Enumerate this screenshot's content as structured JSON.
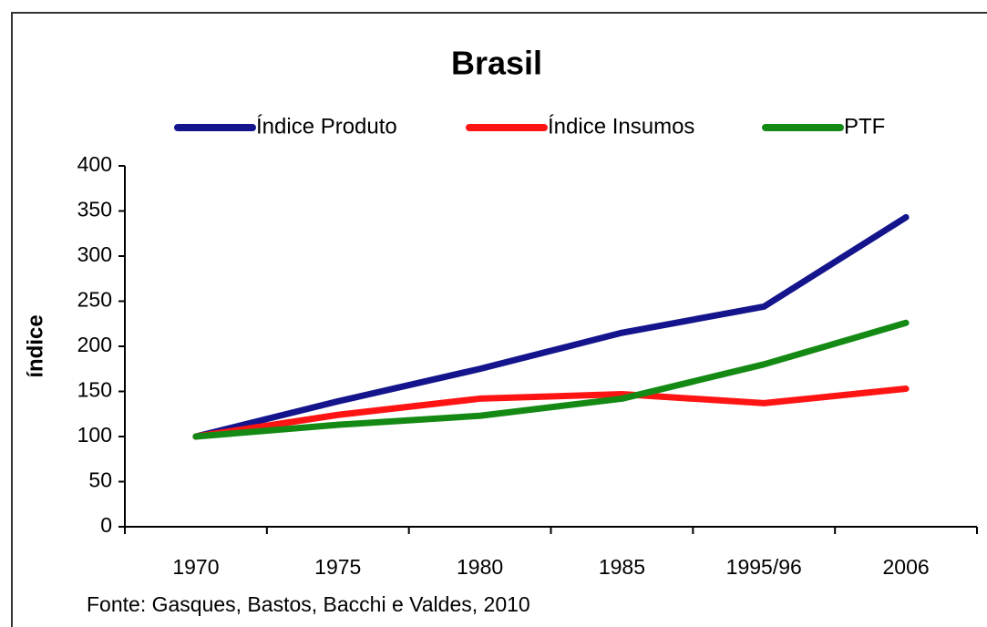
{
  "chart_data": {
    "type": "line",
    "title": "Brasil",
    "y_label": "índice",
    "source": "Fonte: Gasques, Bastos, Bacchi e Valdes, 2010",
    "categories": [
      "1970",
      "1975",
      "1980",
      "1985",
      "1995/96",
      "2006"
    ],
    "series": [
      {
        "name": "Índice Produto",
        "color": "#14148c",
        "values": [
          100,
          139,
          175,
          215,
          244,
          343
        ]
      },
      {
        "name": "Índice Insumos",
        "color": "#ff1414",
        "values": [
          100,
          124,
          142,
          147,
          137,
          153
        ]
      },
      {
        "name": "PTF",
        "color": "#148a14",
        "values": [
          100,
          113,
          123,
          142,
          180,
          226
        ]
      }
    ],
    "ylim": [
      0,
      400
    ],
    "yticks": [
      0,
      50,
      100,
      150,
      200,
      250,
      300,
      350,
      400
    ],
    "grid": false,
    "legend": "top"
  }
}
